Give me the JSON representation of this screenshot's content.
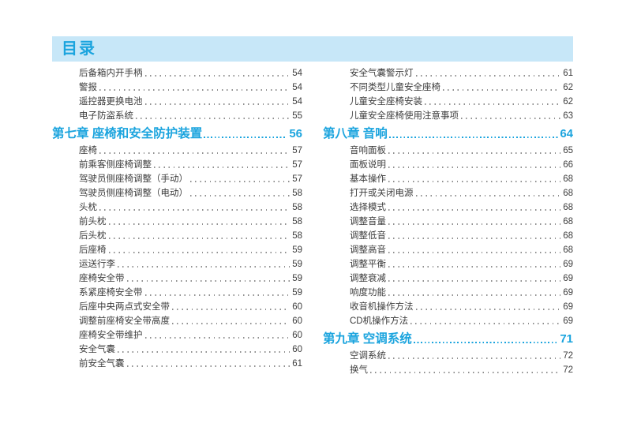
{
  "page": {
    "title": "目录",
    "colors": {
      "accent": "#1ba4de",
      "band": "#c7e7f8",
      "text": "#3d3d3d",
      "dots": "#8f8f8f"
    }
  },
  "columns": [
    {
      "side": "left",
      "items": [
        {
          "type": "entry",
          "label": "后备箱内开手柄",
          "page": "54"
        },
        {
          "type": "entry",
          "label": "警报",
          "page": "54"
        },
        {
          "type": "entry",
          "label": "遥控器更换电池",
          "page": "54"
        },
        {
          "type": "entry",
          "label": "电子防盗系统",
          "page": "55"
        },
        {
          "type": "chapter",
          "label": "第七章 座椅和安全防护装置",
          "page": "56"
        },
        {
          "type": "entry",
          "label": "座椅",
          "page": "57"
        },
        {
          "type": "entry",
          "label": "前乘客侧座椅调整",
          "page": "57"
        },
        {
          "type": "entry",
          "label": "驾驶员侧座椅调整（手动）",
          "page": "57"
        },
        {
          "type": "entry",
          "label": "驾驶员侧座椅调整（电动）",
          "page": "58"
        },
        {
          "type": "entry",
          "label": "头枕",
          "page": "58"
        },
        {
          "type": "entry",
          "label": "前头枕",
          "page": "58"
        },
        {
          "type": "entry",
          "label": "后头枕",
          "page": "58"
        },
        {
          "type": "entry",
          "label": "后座椅",
          "page": "59"
        },
        {
          "type": "entry",
          "label": "运送行李",
          "page": "59"
        },
        {
          "type": "entry",
          "label": "座椅安全带",
          "page": "59"
        },
        {
          "type": "entry",
          "label": "系紧座椅安全带",
          "page": "59"
        },
        {
          "type": "entry",
          "label": "后座中央两点式安全带",
          "page": "60"
        },
        {
          "type": "entry",
          "label": "调整前座椅安全带高度",
          "page": "60"
        },
        {
          "type": "entry",
          "label": "座椅安全带维护",
          "page": "60"
        },
        {
          "type": "entry",
          "label": "安全气囊",
          "page": "60"
        },
        {
          "type": "entry",
          "label": "前安全气囊",
          "page": "61"
        }
      ]
    },
    {
      "side": "right",
      "items": [
        {
          "type": "entry",
          "label": "安全气囊警示灯",
          "page": "61"
        },
        {
          "type": "entry",
          "label": "不同类型儿童安全座椅",
          "page": "62"
        },
        {
          "type": "entry",
          "label": "儿童安全座椅安装",
          "page": "62"
        },
        {
          "type": "entry",
          "label": "儿童安全座椅使用注意事项",
          "page": "63"
        },
        {
          "type": "chapter",
          "label": "第八章 音响",
          "page": "64"
        },
        {
          "type": "entry",
          "label": "音响面板",
          "page": "65"
        },
        {
          "type": "entry",
          "label": "面板说明",
          "page": "66"
        },
        {
          "type": "entry",
          "label": "基本操作",
          "page": "68"
        },
        {
          "type": "entry",
          "label": "打开或关闭电源",
          "page": "68"
        },
        {
          "type": "entry",
          "label": "选择模式",
          "page": "68"
        },
        {
          "type": "entry",
          "label": "调整音量",
          "page": "68"
        },
        {
          "type": "entry",
          "label": "调整低音",
          "page": "68"
        },
        {
          "type": "entry",
          "label": "调整高音",
          "page": "68"
        },
        {
          "type": "entry",
          "label": "调整平衡",
          "page": "69"
        },
        {
          "type": "entry",
          "label": "调整衰减",
          "page": "69"
        },
        {
          "type": "entry",
          "label": "响度功能",
          "page": "69"
        },
        {
          "type": "entry",
          "label": "收音机操作方法",
          "page": "69"
        },
        {
          "type": "entry",
          "label": "CD机操作方法",
          "page": "69"
        },
        {
          "type": "chapter",
          "label": "第九章 空调系统",
          "page": "71"
        },
        {
          "type": "entry",
          "label": "空调系统",
          "page": "72"
        },
        {
          "type": "entry",
          "label": "换气",
          "page": "72"
        }
      ]
    }
  ]
}
